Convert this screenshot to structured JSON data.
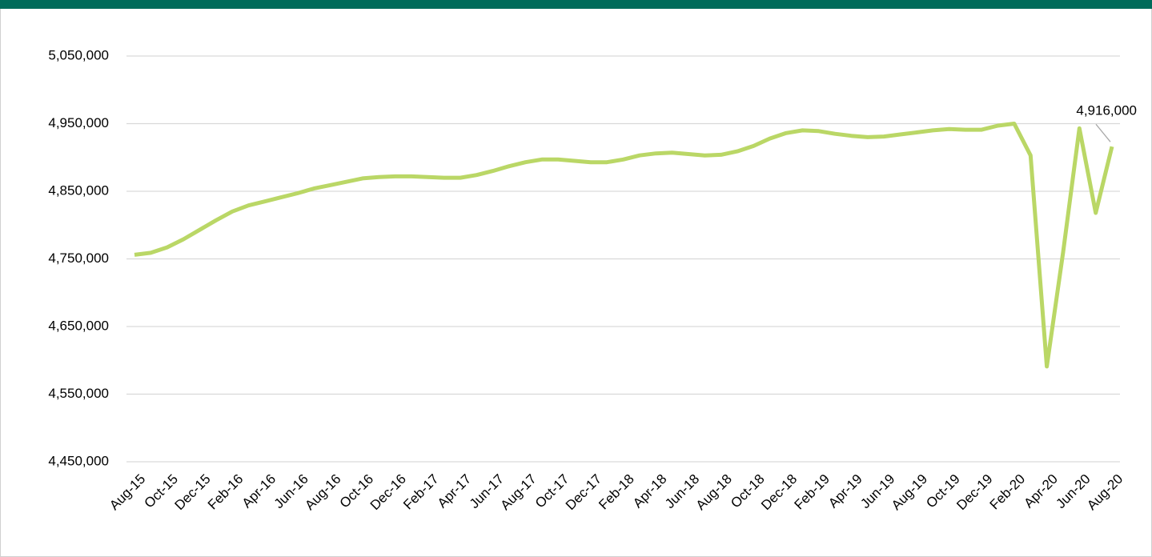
{
  "chart_data": {
    "type": "line",
    "categories": [
      "Aug-15",
      null,
      "Oct-15",
      null,
      "Dec-15",
      null,
      "Feb-16",
      null,
      "Apr-16",
      null,
      "Jun-16",
      null,
      "Aug-16",
      null,
      "Oct-16",
      null,
      "Dec-16",
      null,
      "Feb-17",
      null,
      "Apr-17",
      null,
      "Jun-17",
      null,
      "Aug-17",
      null,
      "Oct-17",
      null,
      "Dec-17",
      null,
      "Feb-18",
      null,
      "Apr-18",
      null,
      "Jun-18",
      null,
      "Aug-18",
      null,
      "Oct-18",
      null,
      "Dec-18",
      null,
      "Feb-19",
      null,
      "Apr-19",
      null,
      "Jun-19",
      null,
      "Aug-19",
      null,
      "Oct-19",
      null,
      "Dec-19",
      null,
      "Feb-20",
      null,
      "Apr-20",
      null,
      "Jun-20",
      null,
      "Aug-20"
    ],
    "series": [
      {
        "color": "#bad766",
        "values": [
          4756000,
          4759000,
          4767000,
          4779000,
          4793000,
          4807000,
          4820000,
          4829000,
          4835000,
          4841000,
          4847000,
          4854000,
          4859000,
          4864000,
          4869000,
          4871000,
          4872000,
          4872000,
          4871000,
          4870000,
          4870000,
          4874000,
          4880000,
          4887000,
          4893000,
          4897000,
          4897000,
          4895000,
          4893000,
          4893000,
          4897000,
          4903000,
          4906000,
          4907000,
          4905000,
          4903000,
          4904000,
          4909000,
          4917000,
          4928000,
          4936000,
          4940000,
          4939000,
          4935000,
          4932000,
          4930000,
          4931000,
          4934000,
          4937000,
          4940000,
          4942000,
          4941000,
          4941000,
          4947000,
          4950000,
          4903000,
          4591000,
          4760000,
          4943000,
          4818000,
          4916000
        ],
        "value_labels": [
          null,
          null,
          null,
          null,
          null,
          null,
          null,
          null,
          null,
          null,
          null,
          null,
          null,
          null,
          null,
          null,
          null,
          null,
          null,
          null,
          null,
          null,
          null,
          null,
          null,
          null,
          null,
          null,
          null,
          null,
          null,
          null,
          null,
          null,
          null,
          null,
          null,
          null,
          null,
          null,
          null,
          null,
          null,
          null,
          null,
          null,
          null,
          null,
          null,
          null,
          null,
          null,
          null,
          null,
          null,
          null,
          null,
          null,
          null,
          null,
          "4,916,000"
        ]
      }
    ],
    "ylim": [
      4450000,
      5050000
    ],
    "yticks": [
      {
        "value": 4450000,
        "label": "4,450,000"
      },
      {
        "value": 4550000,
        "label": "4,550,000"
      },
      {
        "value": 4650000,
        "label": "4,650,000"
      },
      {
        "value": 4750000,
        "label": "4,750,000"
      },
      {
        "value": 4850000,
        "label": "4,850,000"
      },
      {
        "value": 4950000,
        "label": "4,950,000"
      },
      {
        "value": 5050000,
        "label": "5,050,000"
      }
    ],
    "grid": true
  }
}
